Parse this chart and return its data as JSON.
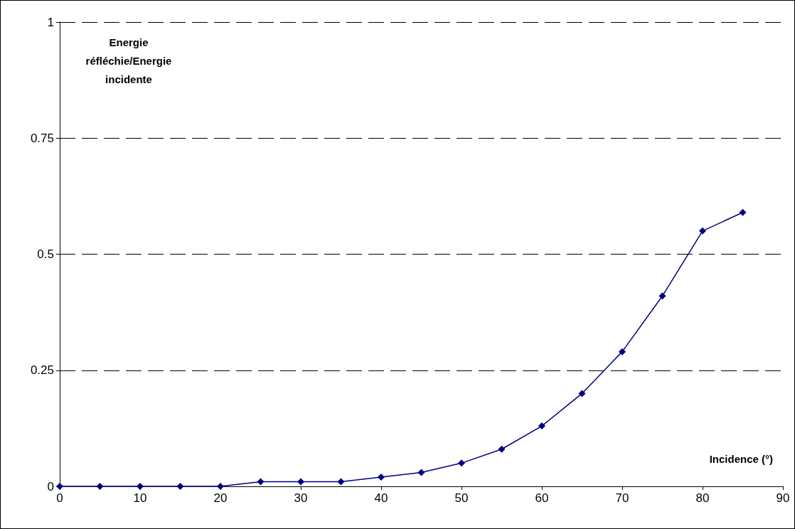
{
  "chart_data": {
    "type": "line",
    "xlabel": "Incidence (°)",
    "ylabel": "Energie réfléchie/Energie incidente",
    "x": [
      0,
      5,
      10,
      15,
      20,
      25,
      30,
      35,
      40,
      45,
      50,
      55,
      60,
      65,
      70,
      75,
      80,
      85
    ],
    "series": [
      {
        "color": "#000080",
        "values": [
          0,
          0,
          0,
          0,
          0,
          0.01,
          0.01,
          0.01,
          0.02,
          0.03,
          0.05,
          0.08,
          0.13,
          0.2,
          0.29,
          0.41,
          0.55,
          0.59
        ]
      }
    ],
    "xlim": [
      0,
      90
    ],
    "xticks": [
      0,
      10,
      20,
      30,
      40,
      50,
      60,
      70,
      80,
      90
    ],
    "ylim": [
      0,
      1
    ],
    "yticks": [
      0,
      0.25,
      0.5,
      0.75,
      1
    ],
    "grid": "y",
    "marker": "diamond",
    "line_style": "solid"
  }
}
